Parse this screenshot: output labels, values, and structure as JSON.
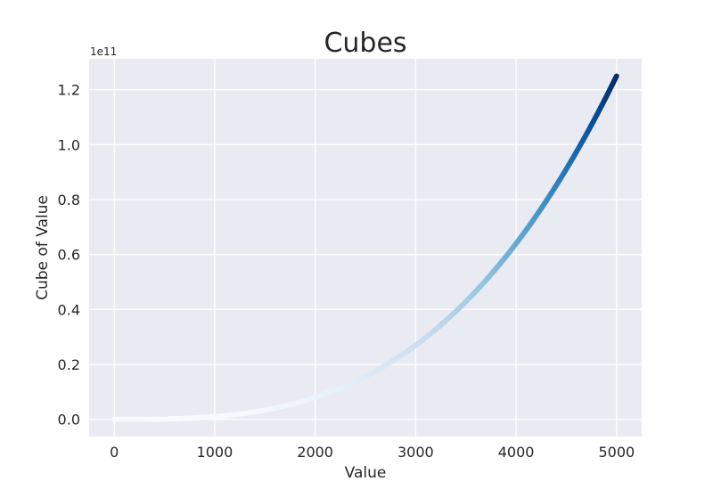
{
  "chart_data": {
    "type": "scatter",
    "title": "Cubes",
    "xlabel": "Value",
    "ylabel": "Cube of Value",
    "y_offset_label": "1e11",
    "x": {
      "start": 1,
      "end": 5000,
      "step": 1
    },
    "y_formula": "x^3",
    "xlim": [
      -250,
      5250
    ],
    "ylim": [
      -0.0625,
      1.3125
    ],
    "y_scale": 100000000000.0,
    "xticks": [
      0,
      1000,
      2000,
      3000,
      4000,
      5000
    ],
    "xtick_labels": [
      "0",
      "1000",
      "2000",
      "3000",
      "4000",
      "5000"
    ],
    "yticks": [
      0.0,
      0.2,
      0.4,
      0.6,
      0.8,
      1.0,
      1.2
    ],
    "ytick_labels": [
      "0.0",
      "0.2",
      "0.4",
      "0.6",
      "0.8",
      "1.0",
      "1.2"
    ],
    "colormap": "Blues",
    "color_stops": [
      "#f7fbff",
      "#deebf7",
      "#c6dbef",
      "#9ecae1",
      "#6baed6",
      "#4292c6",
      "#2171b5",
      "#08519c",
      "#08306b"
    ],
    "grid": true,
    "background": "#eaeaf2",
    "grid_color": "#ffffff"
  }
}
